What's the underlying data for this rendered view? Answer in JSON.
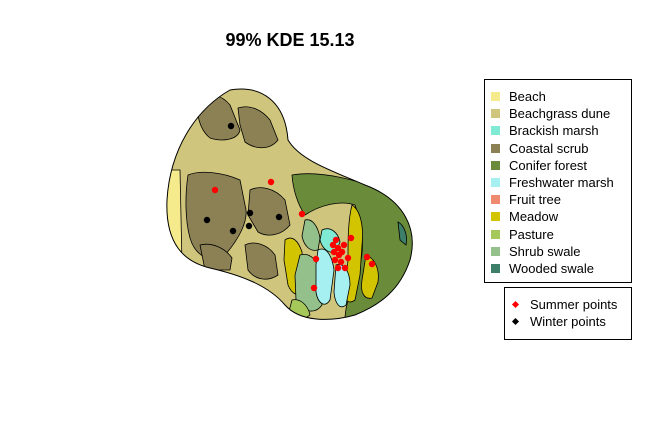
{
  "chart_data": {
    "type": "scatter",
    "title": "99% KDE 15.13",
    "habitats": [
      {
        "name": "Beach",
        "color": "#F6EB8C"
      },
      {
        "name": "Beachgrass dune",
        "color": "#CFC57C"
      },
      {
        "name": "Brackish marsh",
        "color": "#7FEBD4"
      },
      {
        "name": "Coastal scrub",
        "color": "#8C8155"
      },
      {
        "name": "Conifer forest",
        "color": "#6A8B3A"
      },
      {
        "name": "Freshwater marsh",
        "color": "#A6F0F1"
      },
      {
        "name": "Fruit tree",
        "color": "#F08A6E"
      },
      {
        "name": "Meadow",
        "color": "#D2C400"
      },
      {
        "name": "Pasture",
        "color": "#A6C85A"
      },
      {
        "name": "Shrub swale",
        "color": "#94C08C"
      },
      {
        "name": "Wooded swale",
        "color": "#3E7F6A"
      }
    ],
    "series": [
      {
        "name": "Summer points",
        "color": "#FF0000",
        "points": [
          [
            215,
            190
          ],
          [
            271,
            182
          ],
          [
            302,
            214
          ],
          [
            316,
            259
          ],
          [
            314,
            288
          ],
          [
            333,
            245
          ],
          [
            336,
            240
          ],
          [
            338,
            248
          ],
          [
            344,
            245
          ],
          [
            339,
            255
          ],
          [
            335,
            260
          ],
          [
            341,
            262
          ],
          [
            345,
            268
          ],
          [
            338,
            268
          ],
          [
            348,
            258
          ],
          [
            342,
            252
          ],
          [
            334,
            252
          ],
          [
            367,
            257
          ],
          [
            372,
            264
          ],
          [
            351,
            238
          ]
        ]
      },
      {
        "name": "Winter points",
        "color": "#000000",
        "points": [
          [
            231,
            126
          ],
          [
            207,
            220
          ],
          [
            233,
            231
          ],
          [
            250,
            213
          ],
          [
            249,
            226
          ],
          [
            279,
            217
          ]
        ]
      }
    ]
  }
}
